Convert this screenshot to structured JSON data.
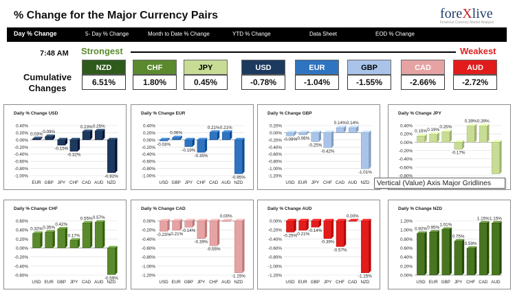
{
  "header": {
    "title": "% Change for the Major Currency Pairs",
    "logo_brand_a": "fore",
    "logo_brand_x": "X",
    "logo_brand_b": "live",
    "logo_tagline": "Financial Currency Market Analysis"
  },
  "tabs": [
    {
      "label": "Day % Change",
      "active": true
    },
    {
      "label": "5- Day % Change",
      "active": false
    },
    {
      "label": "Month to Date % Change",
      "active": false
    },
    {
      "label": "YTD % Change",
      "active": false
    },
    {
      "label": "Data Sheet",
      "active": false
    },
    {
      "label": "EOD % Change",
      "active": false
    }
  ],
  "summary": {
    "time": "7:48 AM",
    "strongest_label": "Strongest",
    "weakest_label": "Weakest",
    "cumulative_label_line1": "Cumulative",
    "cumulative_label_line2": "Changes",
    "currencies": [
      {
        "code": "NZD",
        "value": "6.51%",
        "color": "#2e5a1c"
      },
      {
        "code": "CHF",
        "value": "1.80%",
        "color": "#5b8a2e"
      },
      {
        "code": "JPY",
        "value": "0.45%",
        "color": "#c8dc96",
        "text_color": "#000000"
      },
      {
        "code": "USD",
        "value": "-0.78%",
        "color": "#1b3a5e"
      },
      {
        "code": "EUR",
        "value": "-1.04%",
        "color": "#2f74c0"
      },
      {
        "code": "GBP",
        "value": "-1.55%",
        "color": "#a9c4e8",
        "text_color": "#000000"
      },
      {
        "code": "CAD",
        "value": "-2.66%",
        "color": "#e6a3a3"
      },
      {
        "code": "AUD",
        "value": "-2.72%",
        "color": "#e21b1b"
      }
    ]
  },
  "tooltip": "Vertical (Value) Axis Major Gridlines",
  "chart_data": [
    {
      "type": "bar",
      "title": "Daily % Change USD",
      "categories": [
        "EUR",
        "GBP",
        "JPY",
        "CHF",
        "CAD",
        "AUD",
        "NZD"
      ],
      "values": [
        0.03,
        0.09,
        -0.15,
        -0.32,
        0.23,
        0.25,
        -0.92
      ],
      "labels": [
        "0.03%",
        "0.09%",
        "-0.15%",
        "-0.32%",
        "0.23%",
        "0.25%",
        "-0.92%"
      ],
      "ylim": [
        -1.0,
        0.4
      ],
      "ticks": [
        "0.40%",
        "0.20%",
        "0.00%",
        "-0.20%",
        "-0.40%",
        "-0.60%",
        "-0.80%",
        "-1.00%"
      ],
      "color": "#1b3a5e"
    },
    {
      "type": "bar",
      "title": "Daily % Change EUR",
      "categories": [
        "USD",
        "GBP",
        "JPY",
        "CHF",
        "CAD",
        "AUD",
        "NZD"
      ],
      "values": [
        -0.03,
        0.06,
        -0.19,
        -0.35,
        0.21,
        0.21,
        -0.95
      ],
      "labels": [
        "-0.03%",
        "0.06%",
        "-0.19%",
        "-0.35%",
        "0.21%",
        "0.21%",
        "-0.95%"
      ],
      "ylim": [
        -1.0,
        0.4
      ],
      "ticks": [
        "0.40%",
        "0.20%",
        "0.00%",
        "-0.20%",
        "-0.40%",
        "-0.60%",
        "-0.80%",
        "-1.00%"
      ],
      "color": "#2f74c0"
    },
    {
      "type": "bar",
      "title": "Daily % Change GBP",
      "categories": [
        "USD",
        "EUR",
        "JPY",
        "CHF",
        "CAD",
        "AUD",
        "NZD"
      ],
      "values": [
        -0.09,
        -0.06,
        -0.25,
        -0.42,
        0.14,
        0.14,
        -1.01
      ],
      "labels": [
        "-0.09%",
        "-0.06%",
        "-0.25%",
        "-0.42%",
        "0.14%",
        "0.14%",
        "-1.01%"
      ],
      "ylim": [
        -1.2,
        0.2
      ],
      "ticks": [
        "0.20%",
        "0.00%",
        "-0.20%",
        "-0.40%",
        "-0.60%",
        "-0.80%",
        "-1.00%",
        "-1.20%"
      ],
      "color": "#a9c4e8"
    },
    {
      "type": "bar",
      "title": "Daily % Change JPY",
      "categories": [
        "USD",
        "EUR",
        "GBP",
        "CHF",
        "CAD",
        "AUD",
        "NZD"
      ],
      "values": [
        0.15,
        0.19,
        0.25,
        -0.17,
        0.39,
        0.39,
        -0.76
      ],
      "labels": [
        "0.15%",
        "0.19%",
        "0.25%",
        "-0.17%",
        "0.39%",
        "0.39%",
        ""
      ],
      "ylim": [
        -0.8,
        0.4
      ],
      "ticks": [
        "0.40%",
        "0.20%",
        "0.00%",
        "-0.20%",
        "-0.40%",
        "-0.60%",
        "-0.80%"
      ],
      "color": "#c8dc96"
    },
    {
      "type": "bar",
      "title": "Daily % Change CHF",
      "categories": [
        "USD",
        "EUR",
        "GBP",
        "JPY",
        "CAD",
        "AUD",
        "NZD"
      ],
      "values": [
        0.32,
        0.35,
        0.42,
        0.17,
        0.55,
        0.57,
        -0.59
      ],
      "labels": [
        "0.32%",
        "0.35%",
        "0.42%",
        "0.17%",
        "0.55%",
        "0.57%",
        "-0.59%"
      ],
      "ylim": [
        -0.6,
        0.6
      ],
      "ticks": [
        "0.60%",
        "0.40%",
        "0.20%",
        "0.00%",
        "-0.20%",
        "-0.40%",
        "-0.60%"
      ],
      "color": "#5b8a2e"
    },
    {
      "type": "bar",
      "title": "Daily % Change CAD",
      "categories": [
        "USD",
        "EUR",
        "GBP",
        "JPY",
        "CHF",
        "AUD",
        "NZD"
      ],
      "values": [
        -0.23,
        -0.21,
        -0.14,
        -0.39,
        -0.55,
        0.0,
        -1.15
      ],
      "labels": [
        "-0.23%",
        "-0.21%",
        "-0.14%",
        "-0.39%",
        "-0.55%",
        "0.00%",
        "-1.15%"
      ],
      "ylim": [
        -1.2,
        0.0
      ],
      "ticks": [
        "0.00%",
        "-0.20%",
        "-0.40%",
        "-0.60%",
        "-0.80%",
        "-1.00%",
        "-1.20%"
      ],
      "color": "#e6a3a3"
    },
    {
      "type": "bar",
      "title": "Daily % Change AUD",
      "categories": [
        "USD",
        "EUR",
        "GBP",
        "JPY",
        "CHF",
        "CAD",
        "NZD"
      ],
      "values": [
        -0.25,
        -0.21,
        -0.14,
        -0.39,
        -0.57,
        0.0,
        -1.15
      ],
      "labels": [
        "-0.25%",
        "-0.21%",
        "-0.14%",
        "-0.39%",
        "-0.57%",
        "0.00%",
        "-1.15%"
      ],
      "ylim": [
        -1.2,
        0.0
      ],
      "ticks": [
        "0.00%",
        "-0.20%",
        "-0.40%",
        "-0.60%",
        "-0.80%",
        "-1.00%",
        "-1.20%"
      ],
      "color": "#e21b1b"
    },
    {
      "type": "bar",
      "title": "Daily % Change NZD",
      "categories": [
        "USD",
        "EUR",
        "GBP",
        "JPY",
        "CHF",
        "CAD",
        "AUD"
      ],
      "values": [
        0.92,
        0.95,
        1.01,
        0.75,
        0.59,
        1.15,
        1.15
      ],
      "labels": [
        "0.92%",
        "0.95%",
        "1.01%",
        "0.75%",
        "0.59%",
        "1.15%",
        "1.15%"
      ],
      "ylim": [
        0.0,
        1.2
      ],
      "ticks": [
        "1.20%",
        "1.00%",
        "0.80%",
        "0.60%",
        "0.40%",
        "0.20%",
        "0.00%"
      ],
      "color": "#4a7520"
    }
  ]
}
